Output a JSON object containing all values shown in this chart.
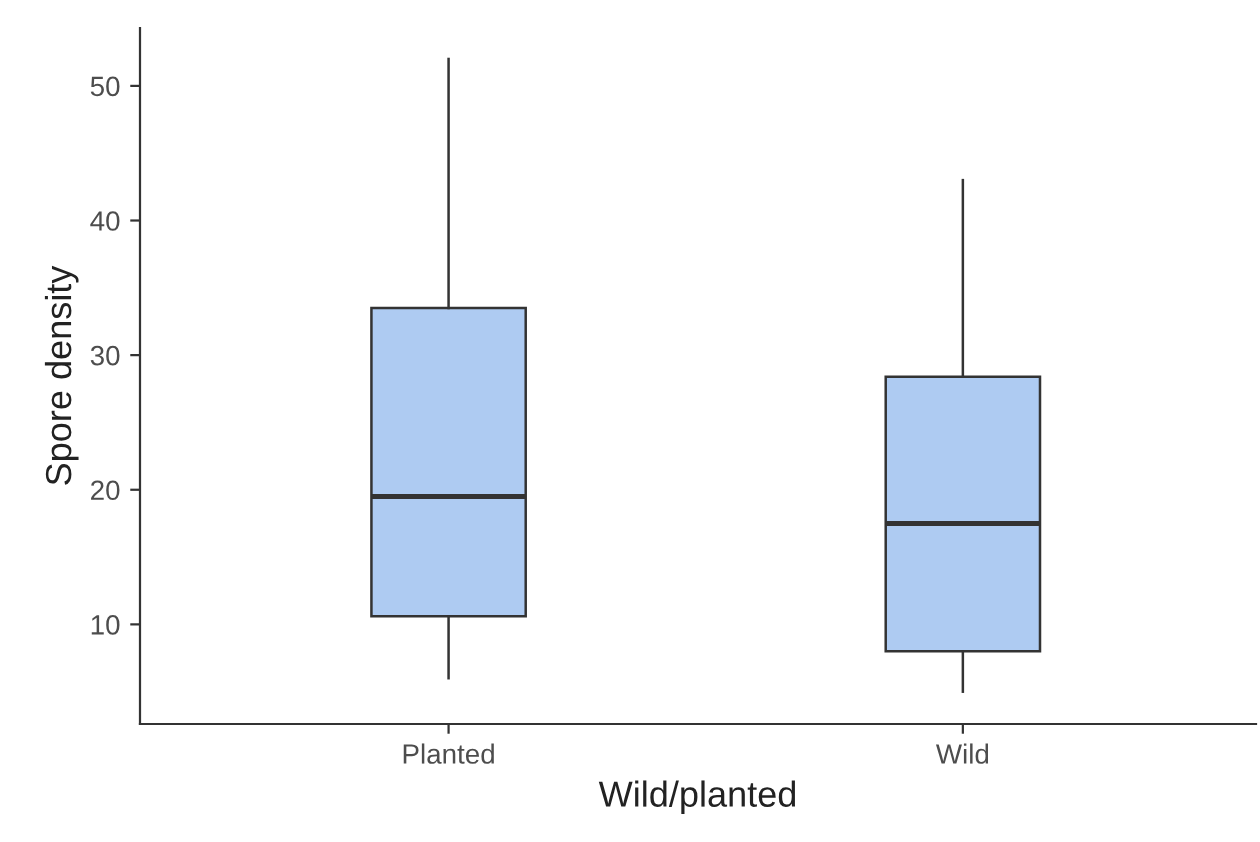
{
  "chart_data": {
    "type": "box",
    "xlabel": "Wild/planted",
    "ylabel": "Spore density",
    "categories": [
      "Planted",
      "Wild"
    ],
    "boxes": [
      {
        "low": 6,
        "q1": 10.6,
        "median": 19.5,
        "q3": 33.5,
        "high": 52
      },
      {
        "low": 5,
        "q1": 8,
        "median": 17.5,
        "q3": 28.4,
        "high": 43
      }
    ],
    "color": "#aecbf2",
    "ylim": [
      2.6,
      54.3
    ],
    "yticks": [
      10,
      20,
      30,
      40,
      50
    ],
    "grid": false
  }
}
